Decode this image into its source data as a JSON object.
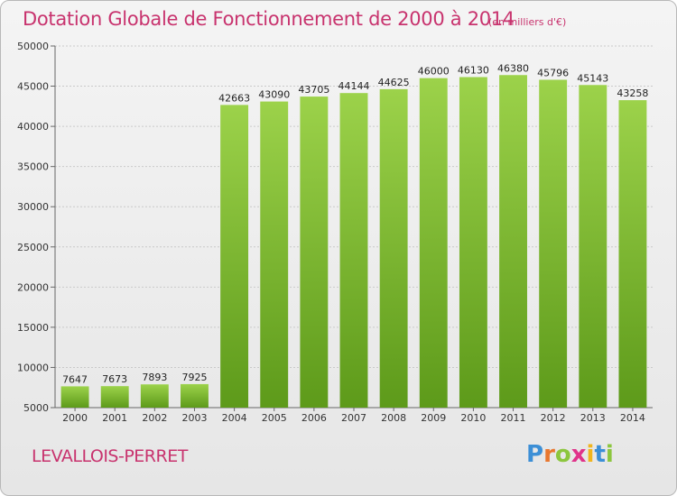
{
  "header": {
    "title": "Dotation Globale de Fonctionnement de 2000 à 2014",
    "unit": "(en milliers d'€)"
  },
  "footer": {
    "town": "LEVALLOIS-PERRET",
    "brand": "Proxiti",
    "brand_letters": [
      "P",
      "r",
      "o",
      "x",
      "i",
      "t",
      "i"
    ],
    "brand_colors": [
      "#3c8fd6",
      "#e8772e",
      "#8cc63e",
      "#e0338a",
      "#f0b51e",
      "#3c8fd6",
      "#8cc63e"
    ]
  },
  "colors": {
    "bar_top": "#9cd24a",
    "bar_bottom": "#5d9a1a",
    "grid": "#c9c9c9",
    "axis": "#666666",
    "accent": "#c8336e"
  },
  "chart_data": {
    "type": "bar",
    "title": "Dotation Globale de Fonctionnement de 2000 à 2014",
    "subtitle": "(en milliers d'€)",
    "categories": [
      "2000",
      "2001",
      "2002",
      "2003",
      "2004",
      "2005",
      "2006",
      "2007",
      "2008",
      "2009",
      "2010",
      "2011",
      "2012",
      "2013",
      "2014"
    ],
    "values": [
      7647,
      7673,
      7893,
      7925,
      42663,
      43090,
      43705,
      44144,
      44625,
      46000,
      46130,
      46380,
      45796,
      45143,
      43258
    ],
    "value_labels": [
      "7647",
      "7673",
      "7893",
      "7925",
      "42663",
      "43090",
      "43705",
      "44144",
      "44625",
      "46000",
      "46130",
      "46380",
      "45796",
      "45143",
      "43258"
    ],
    "ylim": [
      5000,
      50000
    ],
    "yticks": [
      "5000",
      "10000",
      "15000",
      "20000",
      "25000",
      "30000",
      "35000",
      "40000",
      "45000",
      "50000"
    ],
    "grid": true,
    "xlabel": "",
    "ylabel": ""
  }
}
